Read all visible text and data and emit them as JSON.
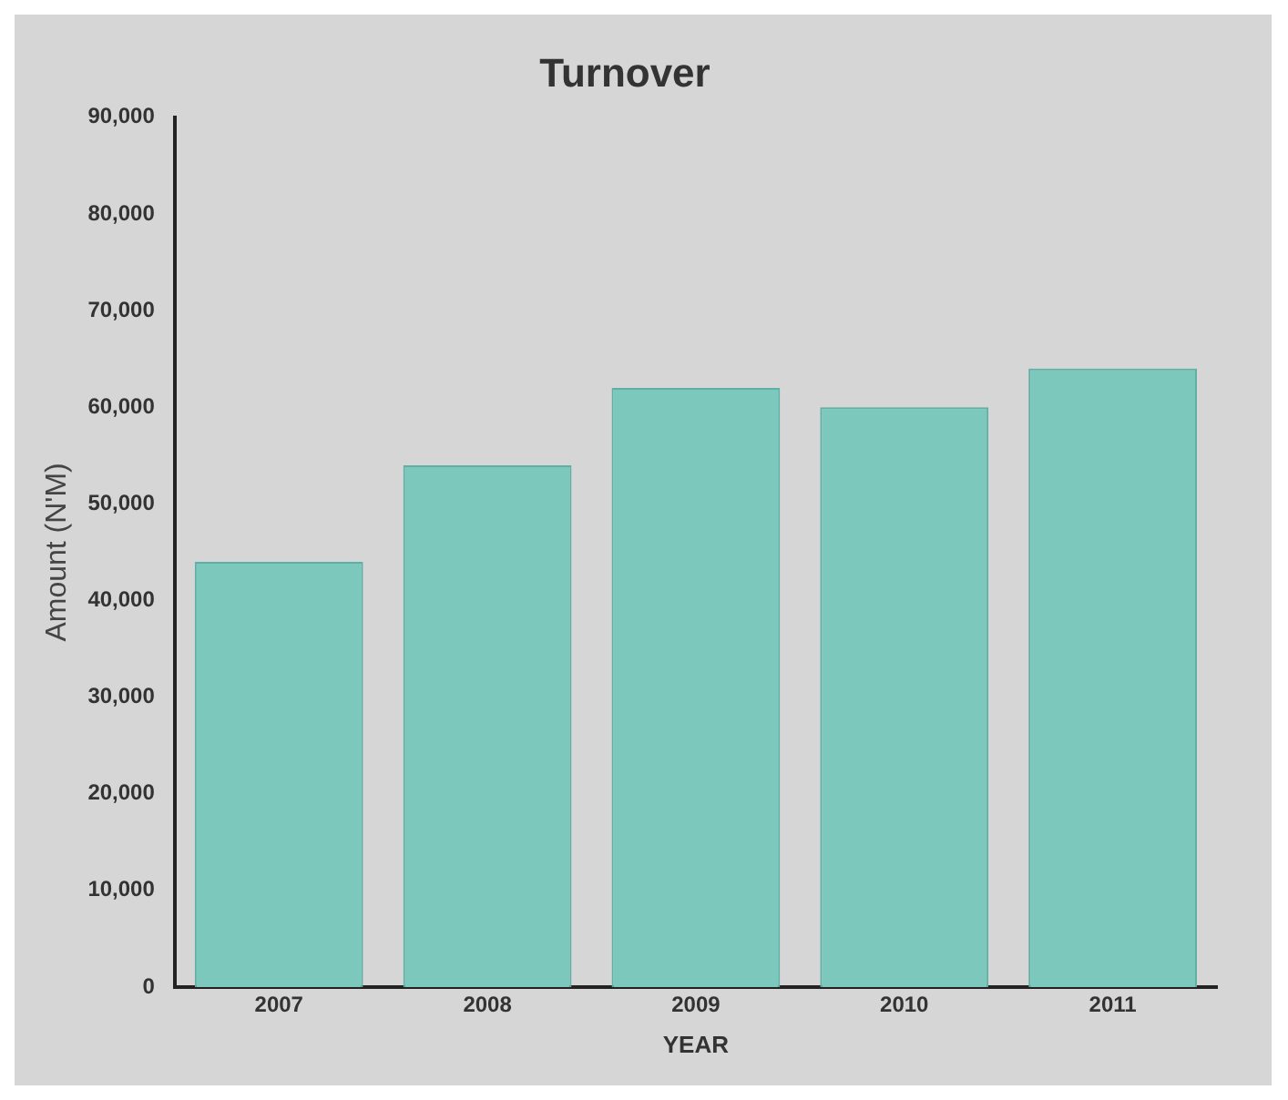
{
  "chart_data": {
    "type": "bar",
    "title": "Turnover",
    "xlabel": "YEAR",
    "ylabel": "Amount (N'M)",
    "categories": [
      "2007",
      "2008",
      "2009",
      "2010",
      "2011"
    ],
    "values": [
      44000,
      54000,
      62000,
      60000,
      64000
    ],
    "color": "#7cc8bd",
    "ylim": [
      0,
      90000
    ],
    "yticks": [
      0,
      {
        "value": 10000,
        "label": "10,000"
      },
      {
        "value": 20000,
        "label": "20,000"
      },
      {
        "value": 30000,
        "label": "30,000"
      },
      {
        "value": 40000,
        "label": "40,000"
      },
      {
        "value": 50000,
        "label": "50,000"
      },
      {
        "value": 60000,
        "label": "60,000"
      },
      {
        "value": 70000,
        "label": "70,000"
      },
      {
        "value": 80000,
        "label": "80,000"
      },
      {
        "value": 90000,
        "label": "90,000"
      }
    ],
    "grid": false,
    "legend": false
  }
}
